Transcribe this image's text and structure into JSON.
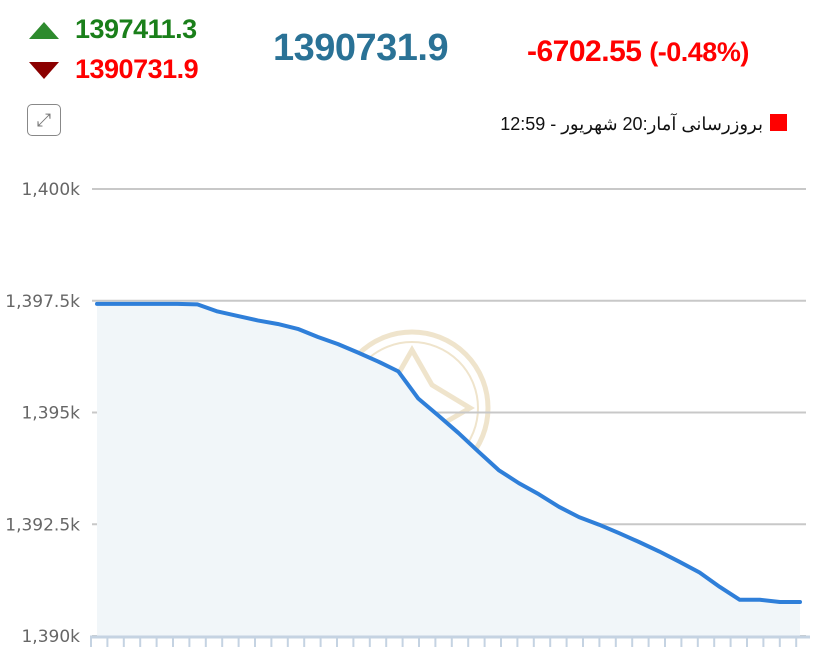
{
  "header": {
    "high": "1397411.3",
    "low": "1390731.9",
    "last": "1390731.9",
    "change": "-6702.55",
    "change_pct": "(-0.48%)",
    "update_label": "بروزرسانی آمار:20 شهریور - 12:59",
    "expand_icon": "expand-arrows-icon"
  },
  "colors": {
    "up": "#1a7f1a",
    "down": "#ff0000",
    "last": "#2a7296",
    "line": "#2f7fd9",
    "fill": "#f1f6f9",
    "grid": "#c8c8c8"
  },
  "chart_data": {
    "type": "area",
    "title": "",
    "xlabel": "",
    "ylabel": "",
    "ylim": [
      1390,
      1400
    ],
    "y_ticks": [
      1390,
      1392.5,
      1395,
      1397.5,
      1400
    ],
    "y_tick_labels": [
      "1,390k",
      "1,392.5k",
      "1,395k",
      "1,397.5k",
      "1,400k"
    ],
    "grid": true,
    "values": [
      1397.43,
      1397.43,
      1397.43,
      1397.43,
      1397.43,
      1397.42,
      1397.26,
      1397.16,
      1397.06,
      1396.98,
      1396.87,
      1396.69,
      1396.53,
      1396.34,
      1396.14,
      1395.92,
      1395.31,
      1394.93,
      1394.54,
      1394.12,
      1393.71,
      1393.42,
      1393.17,
      1392.89,
      1392.66,
      1392.49,
      1392.3,
      1392.1,
      1391.89,
      1391.66,
      1391.42,
      1391.1,
      1390.81,
      1390.81,
      1390.76,
      1390.76
    ]
  }
}
